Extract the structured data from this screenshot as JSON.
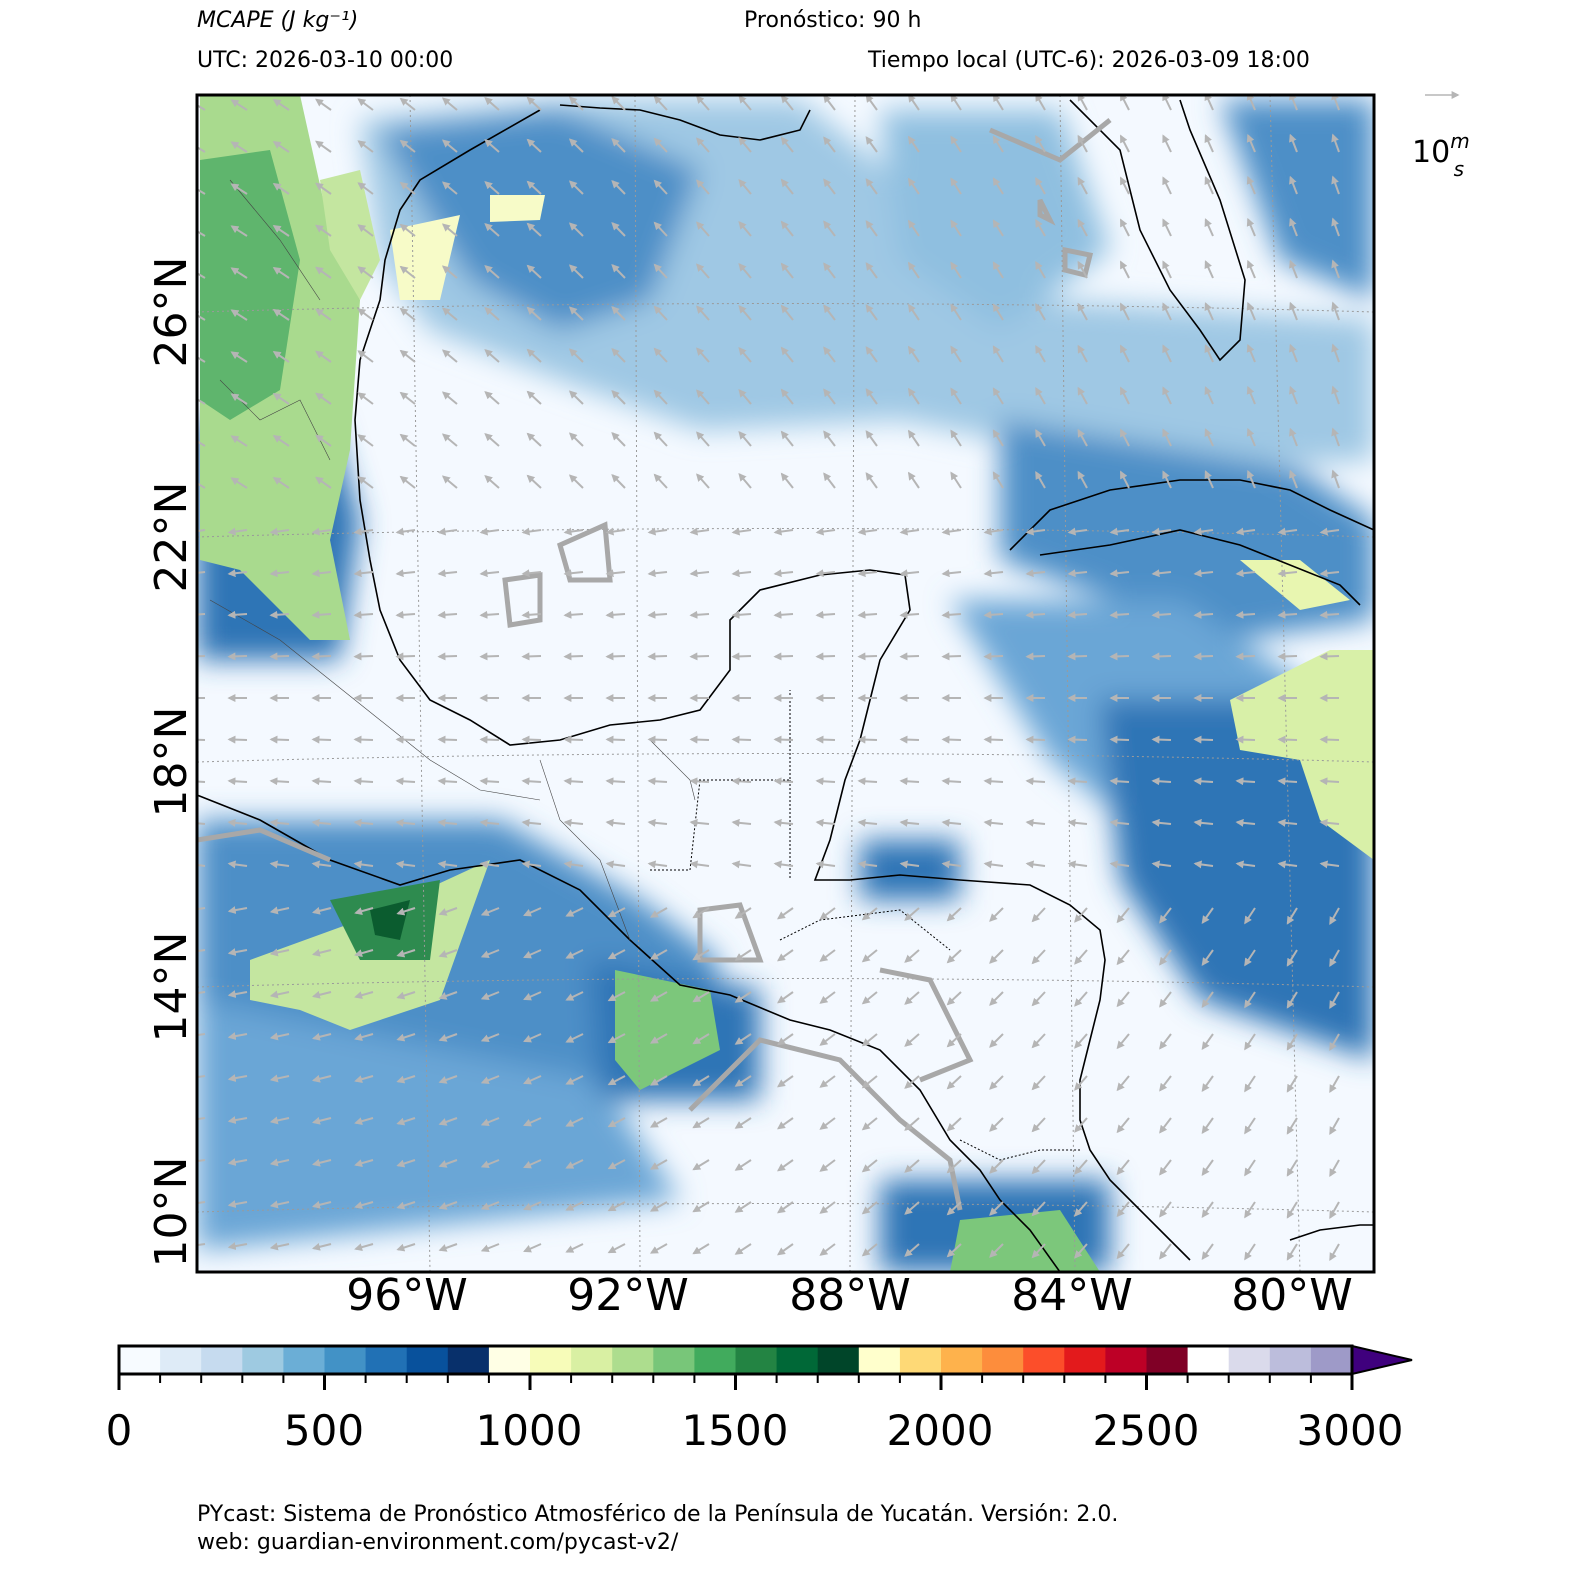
{
  "header": {
    "variable": "MCAPE (J kg⁻¹)",
    "forecast": "Pronóstico: 90 h",
    "utc": "UTC:  2026-03-10 00:00",
    "local_time": "Tiempo local (UTC-6): 2026-03-09 18:00"
  },
  "map": {
    "lat_labels": [
      "26°N",
      "22°N",
      "18°N",
      "14°N",
      "10°N"
    ],
    "lon_labels": [
      "96°W",
      "92°W",
      "88°W",
      "84°W",
      "80°W"
    ],
    "wind_reference": "10 m/s",
    "colors": {
      "ocean_low": "#f4f9ff",
      "blue_mid": "#9fc8e4",
      "blue_high": "#2e74b6",
      "green_low": "#f7fbc8",
      "green_mid": "#7cc77b",
      "green_high": "#0b6b37",
      "arrows": "#b5b5b5"
    }
  },
  "colorbar": {
    "tick_labels": [
      "0",
      "500",
      "1000",
      "1500",
      "2000",
      "2500",
      "3000"
    ],
    "colors": [
      "#f7fbff",
      "#deebf7",
      "#c6dbef",
      "#9ecae1",
      "#6baed6",
      "#4292c6",
      "#2171b5",
      "#08519c",
      "#08306b",
      "#ffffe5",
      "#f7fcb9",
      "#d9f0a3",
      "#addd8e",
      "#78c679",
      "#41ab5d",
      "#238443",
      "#006837",
      "#004529",
      "#ffffcc",
      "#fed976",
      "#feb24c",
      "#fd8d3c",
      "#fc4e2a",
      "#e31a1c",
      "#bd0026",
      "#800026",
      "#ffffff",
      "#dadaeb",
      "#bcbddc",
      "#9e9ac8",
      "#807dba",
      "#54278f",
      "#3f007d"
    ]
  },
  "footer": {
    "line1": "PYcast: Sistema de Pronóstico Atmosférico de la Península de Yucatán. Versión: 2.0.",
    "line2": "web: guardian-environment.com/pycast-v2/"
  }
}
